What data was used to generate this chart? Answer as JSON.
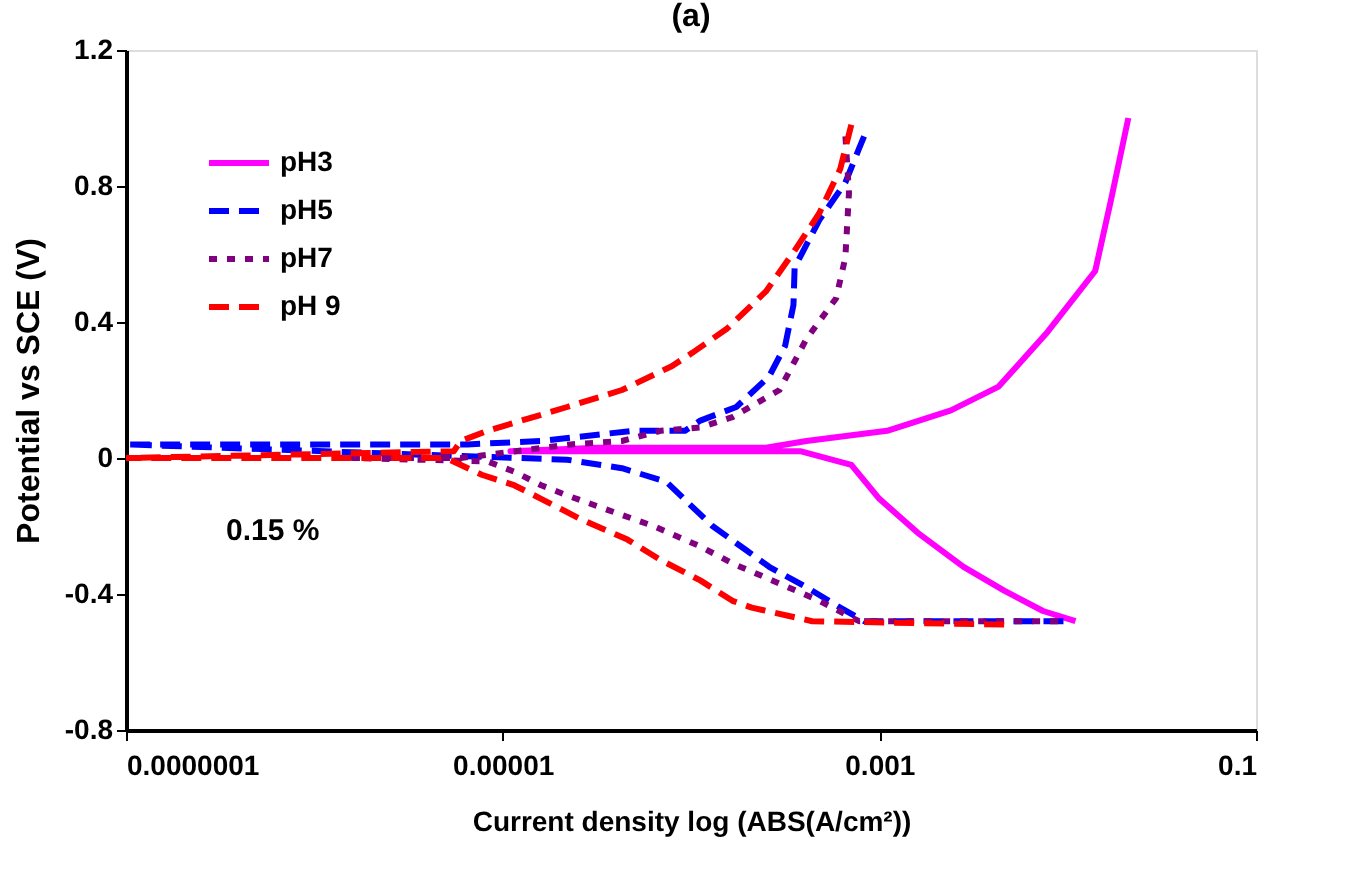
{
  "chart_data": {
    "type": "line",
    "title": "(a)",
    "xlabel": "Current density log (ABS(A/cm²))",
    "ylabel": "Potential vs SCE (V)",
    "log": "x",
    "xlim": [
      1e-07,
      0.1
    ],
    "xticks": [
      {
        "value": 1e-07,
        "label": "0.0000001"
      },
      {
        "value": 1e-05,
        "label": "0.00001"
      },
      {
        "value": 0.001,
        "label": "0.001"
      },
      {
        "value": 0.1,
        "label": "0.1"
      }
    ],
    "ylim": [
      -0.8,
      1.2
    ],
    "yticks": [
      -0.8,
      -0.4,
      0,
      0.4,
      0.8,
      1.2
    ],
    "grid": false,
    "legend": "top left",
    "annotations": [
      "0.15 %"
    ],
    "series": [
      {
        "name": "pH3",
        "color": "#ff00ff",
        "line_style": "solid",
        "x": [
          0.011,
          0.0074,
          0.0046,
          0.0028,
          0.0016,
          0.001,
          0.00071,
          0.00038,
          0.0001,
          1.1e-05,
          3.2e-05,
          0.00025,
          0.00041,
          0.0011,
          0.0024,
          0.0043,
          0.0078,
          0.014,
          0.017,
          0.021
        ],
        "values": [
          -0.48,
          -0.45,
          -0.39,
          -0.32,
          -0.22,
          -0.12,
          -0.02,
          0.02,
          0.02,
          0.02,
          0.03,
          0.03,
          0.05,
          0.08,
          0.14,
          0.21,
          0.37,
          0.55,
          0.76,
          1.0
        ]
      },
      {
        "name": "pH5",
        "color": "#0000ff",
        "line_style": "dashed",
        "x": [
          0.0095,
          0.00083,
          0.00062,
          0.00041,
          0.00026,
          0.000195,
          0.00013,
          0.0001,
          7.4e-05,
          4.3e-05,
          2.2e-05,
          1e-07,
          6.5e-06,
          1.6e-05,
          4.9e-05,
          9.3e-05,
          0.000112,
          0.000174,
          0.00026,
          0.000316,
          0.00035,
          0.000355,
          0.00048,
          0.00066,
          0.00078,
          0.00085
        ],
        "values": [
          -0.48,
          -0.48,
          -0.44,
          -0.38,
          -0.32,
          -0.27,
          -0.2,
          -0.14,
          -0.07,
          -0.03,
          -0.005,
          0.04,
          0.04,
          0.05,
          0.08,
          0.08,
          0.11,
          0.15,
          0.24,
          0.33,
          0.45,
          0.56,
          0.7,
          0.81,
          0.91,
          0.96
        ]
      },
      {
        "name": "pH7",
        "color": "#800080",
        "line_style": "dotted",
        "x": [
          0.0089,
          0.00078,
          0.00048,
          0.00027,
          0.000166,
          0.000112,
          6.3e-05,
          3.5e-05,
          2.2e-05,
          1.6e-05,
          1.15e-05,
          8.3e-06,
          1.6e-06,
          6e-06,
          2.3e-05,
          4.3e-05,
          6.9e-05,
          0.000112,
          0.000166,
          0.000295,
          0.00041,
          0.00059,
          0.00066,
          0.00069,
          0.00066
        ],
        "values": [
          -0.48,
          -0.48,
          -0.42,
          -0.36,
          -0.31,
          -0.26,
          -0.2,
          -0.15,
          -0.11,
          -0.08,
          -0.04,
          -0.01,
          0.0,
          0.0,
          0.04,
          0.05,
          0.08,
          0.09,
          0.12,
          0.2,
          0.35,
          0.47,
          0.59,
          0.78,
          0.95
        ]
      },
      {
        "name": "pH 9",
        "color": "#ff0000",
        "line_style": "dashed",
        "x": [
          0.0046,
          0.00044,
          0.00021,
          0.000166,
          0.000112,
          6.9e-05,
          4.6e-05,
          2.6e-05,
          1.6e-05,
          1.15e-05,
          7.8e-06,
          5e-06,
          1e-07,
          5.5e-06,
          6e-06,
          8.3e-06,
          1.26e-05,
          2.2e-05,
          4.3e-05,
          7.9e-05,
          0.000102,
          0.000155,
          0.00025,
          0.000355,
          0.00048,
          0.00062,
          0.00071
        ],
        "values": [
          -0.49,
          -0.48,
          -0.44,
          -0.42,
          -0.36,
          -0.3,
          -0.24,
          -0.18,
          -0.12,
          -0.08,
          -0.05,
          0.0,
          0.0,
          0.02,
          0.05,
          0.08,
          0.11,
          0.15,
          0.2,
          0.27,
          0.31,
          0.38,
          0.49,
          0.61,
          0.72,
          0.85,
          0.98
        ]
      }
    ]
  }
}
